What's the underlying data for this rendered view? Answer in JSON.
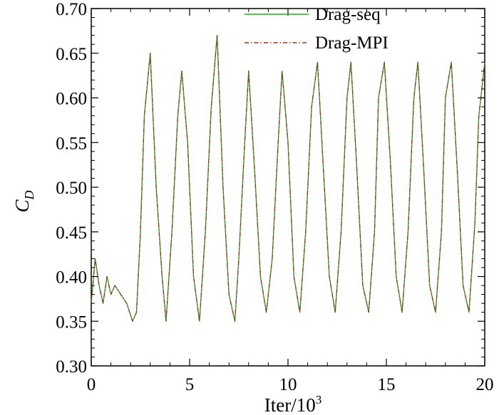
{
  "chart_data": {
    "type": "line",
    "title": "",
    "xlabel": {
      "base": "Iter/10",
      "sup": "3"
    },
    "ylabel": {
      "base": "C",
      "sub": "D"
    },
    "xlim": [
      0,
      20
    ],
    "ylim": [
      0.3,
      0.7
    ],
    "xticks": [
      0,
      5,
      10,
      15,
      20
    ],
    "xtick_labels": [
      "0",
      "5",
      "10",
      "15",
      "20"
    ],
    "yticks": [
      0.3,
      0.35,
      0.4,
      0.45,
      0.5,
      0.55,
      0.6,
      0.65,
      0.7
    ],
    "ytick_labels": [
      "0.30",
      "0.35",
      "0.40",
      "0.45",
      "0.50",
      "0.55",
      "0.60",
      "0.65",
      "0.70"
    ],
    "grid": false,
    "legend_position": "top-right",
    "series": [
      {
        "name": "Drag-seq",
        "color": "#2e9e2e",
        "style": "solid",
        "x": [
          0.0,
          0.2,
          0.4,
          0.6,
          0.8,
          1.0,
          1.2,
          1.5,
          1.8,
          2.1,
          2.3,
          2.5,
          2.7,
          3.0,
          3.3,
          3.6,
          3.8,
          4.1,
          4.4,
          4.6,
          4.9,
          5.2,
          5.5,
          5.8,
          6.1,
          6.4,
          6.7,
          7.0,
          7.3,
          7.5,
          7.8,
          8.0,
          8.3,
          8.6,
          8.9,
          9.2,
          9.5,
          9.7,
          10.0,
          10.3,
          10.6,
          10.9,
          11.2,
          11.5,
          11.8,
          12.1,
          12.4,
          12.7,
          13.0,
          13.2,
          13.5,
          13.8,
          14.1,
          14.4,
          14.6,
          14.9,
          15.2,
          15.5,
          15.8,
          16.1,
          16.4,
          16.6,
          16.9,
          17.2,
          17.5,
          17.8,
          18.0,
          18.3,
          18.6,
          18.9,
          19.2,
          19.5,
          19.7,
          20.0
        ],
        "y": [
          0.37,
          0.42,
          0.39,
          0.37,
          0.4,
          0.38,
          0.39,
          0.38,
          0.37,
          0.35,
          0.36,
          0.45,
          0.58,
          0.65,
          0.5,
          0.4,
          0.35,
          0.45,
          0.58,
          0.63,
          0.55,
          0.4,
          0.35,
          0.45,
          0.59,
          0.67,
          0.5,
          0.38,
          0.35,
          0.42,
          0.55,
          0.63,
          0.52,
          0.4,
          0.36,
          0.42,
          0.55,
          0.63,
          0.55,
          0.4,
          0.36,
          0.45,
          0.59,
          0.64,
          0.52,
          0.4,
          0.36,
          0.45,
          0.6,
          0.64,
          0.52,
          0.39,
          0.36,
          0.45,
          0.6,
          0.64,
          0.53,
          0.4,
          0.36,
          0.45,
          0.6,
          0.64,
          0.52,
          0.39,
          0.36,
          0.45,
          0.6,
          0.64,
          0.52,
          0.39,
          0.36,
          0.46,
          0.58,
          0.64
        ]
      },
      {
        "name": "Drag-MPI",
        "color": "#8b3a1a",
        "style": "dashdot",
        "x": [
          0.0,
          0.2,
          0.4,
          0.6,
          0.8,
          1.0,
          1.2,
          1.5,
          1.8,
          2.1,
          2.3,
          2.5,
          2.7,
          3.0,
          3.3,
          3.6,
          3.8,
          4.1,
          4.4,
          4.6,
          4.9,
          5.2,
          5.5,
          5.8,
          6.1,
          6.4,
          6.7,
          7.0,
          7.3,
          7.5,
          7.8,
          8.0,
          8.3,
          8.6,
          8.9,
          9.2,
          9.5,
          9.7,
          10.0,
          10.3,
          10.6,
          10.9,
          11.2,
          11.5,
          11.8,
          12.1,
          12.4,
          12.7,
          13.0,
          13.2,
          13.5,
          13.8,
          14.1,
          14.4,
          14.6,
          14.9,
          15.2,
          15.5,
          15.8,
          16.1,
          16.4,
          16.6,
          16.9,
          17.2,
          17.5,
          17.8,
          18.0,
          18.3,
          18.6,
          18.9,
          19.2,
          19.5,
          19.7,
          20.0
        ],
        "y": [
          0.37,
          0.42,
          0.39,
          0.37,
          0.4,
          0.38,
          0.39,
          0.38,
          0.37,
          0.35,
          0.36,
          0.45,
          0.58,
          0.65,
          0.5,
          0.4,
          0.35,
          0.45,
          0.58,
          0.63,
          0.55,
          0.4,
          0.35,
          0.45,
          0.59,
          0.67,
          0.5,
          0.38,
          0.35,
          0.42,
          0.55,
          0.63,
          0.52,
          0.4,
          0.36,
          0.42,
          0.55,
          0.63,
          0.55,
          0.4,
          0.36,
          0.45,
          0.59,
          0.64,
          0.52,
          0.4,
          0.36,
          0.45,
          0.6,
          0.64,
          0.52,
          0.39,
          0.36,
          0.45,
          0.6,
          0.64,
          0.53,
          0.4,
          0.36,
          0.45,
          0.6,
          0.64,
          0.52,
          0.39,
          0.36,
          0.45,
          0.6,
          0.64,
          0.52,
          0.39,
          0.36,
          0.46,
          0.58,
          0.64
        ]
      }
    ]
  }
}
